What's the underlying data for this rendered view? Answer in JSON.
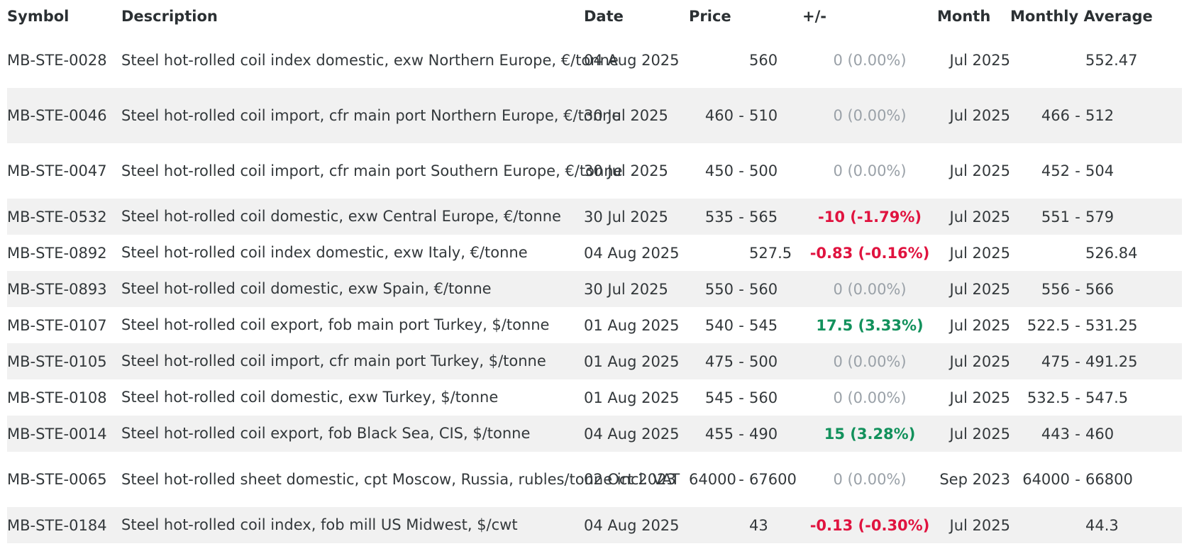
{
  "headers": {
    "symbol": "Symbol",
    "description": "Description",
    "date": "Date",
    "price": "Price",
    "change": "+/-",
    "month": "Month",
    "monthly_average": "Monthly Average"
  },
  "colors": {
    "negative": "#e0133f",
    "positive": "#12915c",
    "neutral": "#9aa1a8",
    "row_alt": "#f1f1f1"
  },
  "rows": [
    {
      "symbol": "MB-STE-0028",
      "description": "Steel hot-rolled coil index domestic, exw Northern Europe, €/tonne",
      "date": "04 Aug 2025",
      "price_low": "",
      "price_dash": "",
      "price_high": "560",
      "change": "0 (0.00%)",
      "change_dir": "neutral",
      "month": "Jul 2025",
      "avg_low": "",
      "avg_dash": "",
      "avg_high": "552.47"
    },
    {
      "symbol": "MB-STE-0046",
      "description": "Steel hot-rolled coil import, cfr main port Northern Europe, €/tonne",
      "date": "30 Jul 2025",
      "price_low": "460",
      "price_dash": "-",
      "price_high": "510",
      "change": "0 (0.00%)",
      "change_dir": "neutral",
      "month": "Jul 2025",
      "avg_low": "466",
      "avg_dash": "-",
      "avg_high": "512"
    },
    {
      "symbol": "MB-STE-0047",
      "description": "Steel hot-rolled coil import, cfr main port Southern Europe, €/tonne",
      "date": "30 Jul 2025",
      "price_low": "450",
      "price_dash": "-",
      "price_high": "500",
      "change": "0 (0.00%)",
      "change_dir": "neutral",
      "month": "Jul 2025",
      "avg_low": "452",
      "avg_dash": "-",
      "avg_high": "504"
    },
    {
      "symbol": "MB-STE-0532",
      "description": "Steel hot-rolled coil domestic, exw Central Europe, €/tonne",
      "date": "30 Jul 2025",
      "price_low": "535",
      "price_dash": "-",
      "price_high": "565",
      "change": "-10 (-1.79%)",
      "change_dir": "down",
      "month": "Jul 2025",
      "avg_low": "551",
      "avg_dash": "-",
      "avg_high": "579"
    },
    {
      "symbol": "MB-STE-0892",
      "description": "Steel hot-rolled coil index domestic, exw Italy, €/tonne",
      "date": "04 Aug 2025",
      "price_low": "",
      "price_dash": "",
      "price_high": "527.5",
      "change": "-0.83 (-0.16%)",
      "change_dir": "down",
      "month": "Jul 2025",
      "avg_low": "",
      "avg_dash": "",
      "avg_high": "526.84"
    },
    {
      "symbol": "MB-STE-0893",
      "description": "Steel hot-rolled coil domestic, exw Spain, €/tonne",
      "date": "30 Jul 2025",
      "price_low": "550",
      "price_dash": "-",
      "price_high": "560",
      "change": "0 (0.00%)",
      "change_dir": "neutral",
      "month": "Jul 2025",
      "avg_low": "556",
      "avg_dash": "-",
      "avg_high": "566"
    },
    {
      "symbol": "MB-STE-0107",
      "description": "Steel hot-rolled coil export, fob main port Turkey, $/tonne",
      "date": "01 Aug 2025",
      "price_low": "540",
      "price_dash": "-",
      "price_high": "545",
      "change": "17.5 (3.33%)",
      "change_dir": "up",
      "month": "Jul 2025",
      "avg_low": "522.5",
      "avg_dash": "-",
      "avg_high": "531.25"
    },
    {
      "symbol": "MB-STE-0105",
      "description": "Steel hot-rolled coil import, cfr main port Turkey, $/tonne",
      "date": "01 Aug 2025",
      "price_low": "475",
      "price_dash": "-",
      "price_high": "500",
      "change": "0 (0.00%)",
      "change_dir": "neutral",
      "month": "Jul 2025",
      "avg_low": "475",
      "avg_dash": "-",
      "avg_high": "491.25"
    },
    {
      "symbol": "MB-STE-0108",
      "description": "Steel hot-rolled coil domestic, exw Turkey, $/tonne",
      "date": "01 Aug 2025",
      "price_low": "545",
      "price_dash": "-",
      "price_high": "560",
      "change": "0 (0.00%)",
      "change_dir": "neutral",
      "month": "Jul 2025",
      "avg_low": "532.5",
      "avg_dash": "-",
      "avg_high": "547.5"
    },
    {
      "symbol": "MB-STE-0014",
      "description": "Steel hot-rolled coil export, fob Black Sea, CIS, $/tonne",
      "date": "04 Aug 2025",
      "price_low": "455",
      "price_dash": "-",
      "price_high": "490",
      "change": "15 (3.28%)",
      "change_dir": "up",
      "month": "Jul 2025",
      "avg_low": "443",
      "avg_dash": "-",
      "avg_high": "460"
    },
    {
      "symbol": "MB-STE-0065",
      "description": "Steel hot-rolled sheet domestic, cpt Moscow, Russia, rubles/tonne incl. VAT",
      "date": "02 Oct 2023",
      "price_low": "64000",
      "price_dash": "-",
      "price_high": "67600",
      "change": "0 (0.00%)",
      "change_dir": "neutral",
      "month": "Sep 2023",
      "avg_low": "64000",
      "avg_dash": "-",
      "avg_high": "66800"
    },
    {
      "symbol": "MB-STE-0184",
      "description": "Steel hot-rolled coil index, fob mill US Midwest, $/cwt",
      "date": "04 Aug 2025",
      "price_low": "",
      "price_dash": "",
      "price_high": "43",
      "change": "-0.13 (-0.30%)",
      "change_dir": "down",
      "month": "Jul 2025",
      "avg_low": "",
      "avg_dash": "",
      "avg_high": "44.3"
    }
  ]
}
